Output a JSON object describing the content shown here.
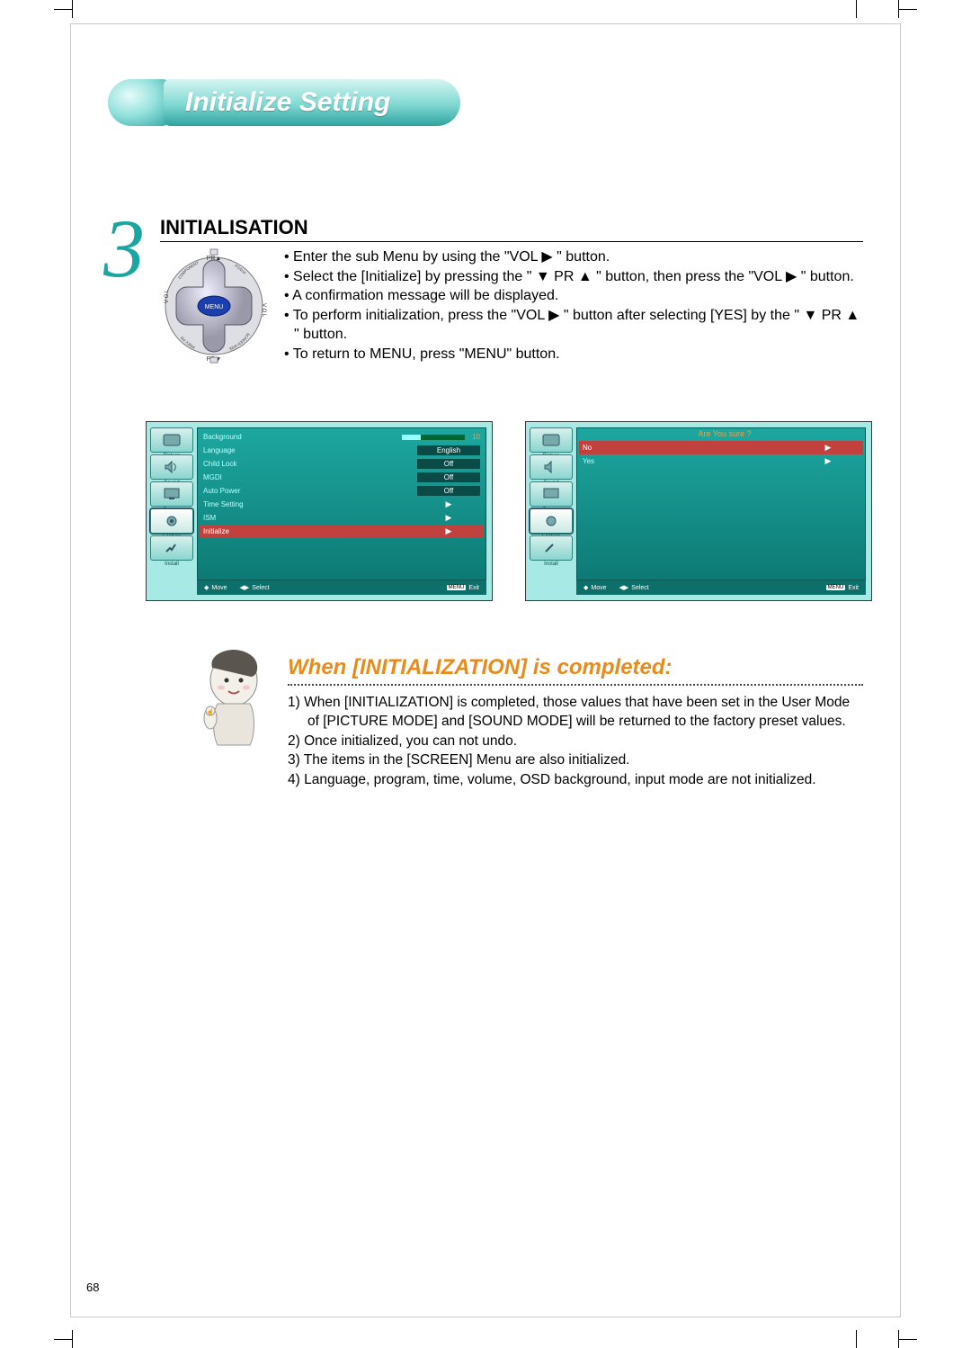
{
  "colors": {
    "accent_teal": "#1aa6a0",
    "accent_orange": "#e98b1a",
    "osd_bg": "#a7e9e4",
    "osd_panel": "#1da7a0",
    "osd_sel": "#c0413d",
    "pill_text": "#ffffff"
  },
  "page_number": "68",
  "title": "Initialize Setting",
  "step": {
    "number": "3",
    "heading": "INITIALISATION",
    "bullets": [
      "• Enter the sub Menu by using the \"VOL ▶ \" button.",
      "• Select the [Initialize] by pressing the \" ▼ PR ▲ \" button, then press the \"VOL ▶ \" button.",
      "• A confirmation message will be displayed.",
      "• To perform initialization, press the \"VOL ▶ \" button after selecting [YES] by the \" ▼ PR ▲ \" button.",
      "• To return to MENU, press \"MENU\" button."
    ]
  },
  "osd_left": {
    "sidebar": [
      "Picture",
      "Sound",
      "Screen",
      "Feature",
      "Install"
    ],
    "active_sidebar_index": 3,
    "rows": [
      {
        "label": "Background",
        "value": "10",
        "type": "slider"
      },
      {
        "label": "Language",
        "value": "English",
        "type": "val"
      },
      {
        "label": "Child Lock",
        "value": "Off",
        "type": "val"
      },
      {
        "label": "MGDI",
        "value": "Off",
        "type": "val"
      },
      {
        "label": "Auto Power",
        "value": "Off",
        "type": "val"
      },
      {
        "label": "Time Setting",
        "value": "▶",
        "type": "arrow"
      },
      {
        "label": "ISM",
        "value": "▶",
        "type": "arrow"
      },
      {
        "label": "Initialize",
        "value": "▶",
        "type": "arrow",
        "selected": true
      }
    ],
    "footer": {
      "move": "Move",
      "select": "Select",
      "exit_badge": "MENU",
      "exit": "Exit"
    }
  },
  "osd_right": {
    "title": "Are You sure ?",
    "sidebar": [
      "Picture",
      "Sound",
      "Screen",
      "Feature",
      "Install"
    ],
    "active_sidebar_index": 3,
    "rows": [
      {
        "label": "No",
        "value": "▶",
        "type": "arrow",
        "selected": true
      },
      {
        "label": "Yes",
        "value": "▶",
        "type": "arrow"
      }
    ],
    "footer": {
      "move": "Move",
      "select": "Select",
      "exit_badge": "MENU",
      "exit": "Exit"
    }
  },
  "completed": {
    "heading": "When [INITIALIZATION] is completed:",
    "items": [
      "1) When [INITIALIZATION] is completed, those values that have been set in the User Mode of [PICTURE MODE] and [SOUND MODE] will be returned to the factory preset values.",
      "2) Once initialized, you can not undo.",
      "3) The items in the [SCREEN] Menu are also initialized.",
      "4) Language, program, time, volume, OSD background, input mode are not initialized."
    ]
  },
  "remote": {
    "labels": {
      "up": "PR▲",
      "down": "PR▼",
      "left_small": "VOL",
      "right_small": "VOL",
      "center": "MENU",
      "tl": "COMPONENT",
      "tr": "PC/DVI",
      "bl": "PREV PR",
      "br": "SCREEN SIZE"
    }
  }
}
